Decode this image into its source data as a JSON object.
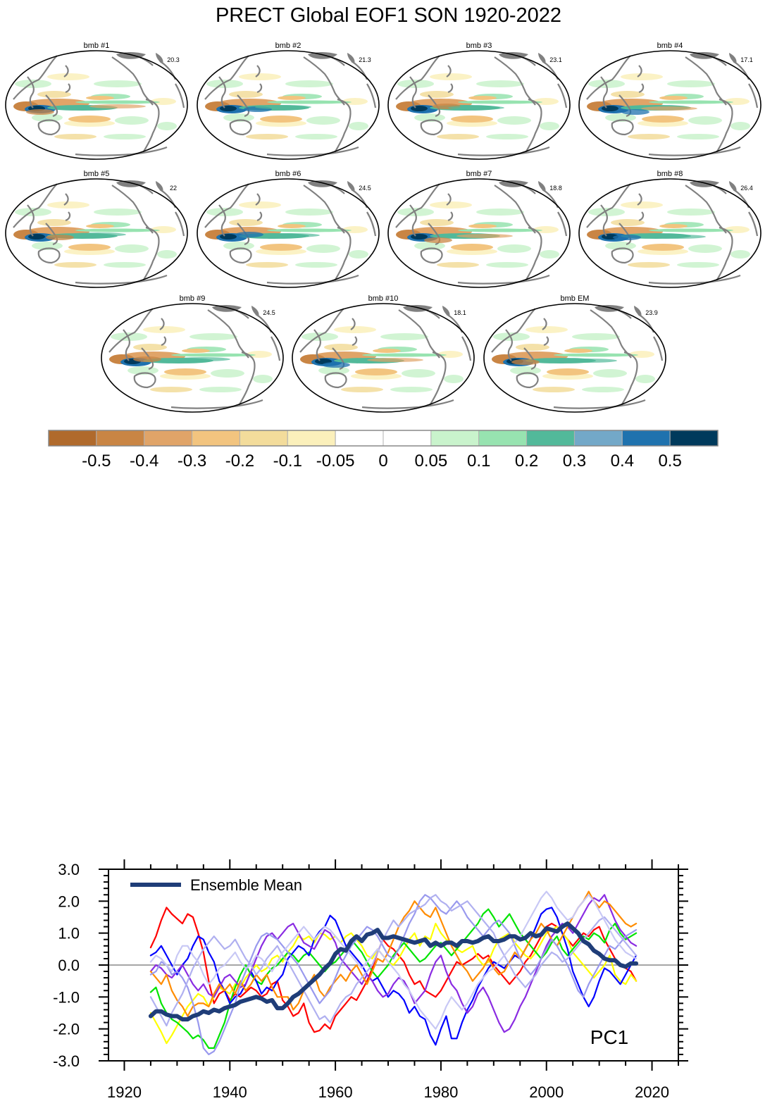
{
  "figure": {
    "title": "PRECT Global EOF1 SON 1920-2022"
  },
  "panels": [
    {
      "label": "bmb #1",
      "percent": "20.3"
    },
    {
      "label": "bmb #2",
      "percent": "21.3"
    },
    {
      "label": "bmb #3",
      "percent": "23.1"
    },
    {
      "label": "bmb #4",
      "percent": "17.1"
    },
    {
      "label": "bmb #5",
      "percent": "22"
    },
    {
      "label": "bmb #6",
      "percent": "24.5"
    },
    {
      "label": "bmb #7",
      "percent": "18.8"
    },
    {
      "label": "bmb #8",
      "percent": "26.4"
    },
    {
      "label": "bmb #9",
      "percent": "24.5"
    },
    {
      "label": "bmb #10",
      "percent": "18.1"
    },
    {
      "label": "bmb EM",
      "percent": "23.9"
    }
  ],
  "colorbar": {
    "colors": [
      "#b06a2c",
      "#c98544",
      "#e0a468",
      "#f2c47f",
      "#f3dc9b",
      "#fbf0bb",
      "#ffffff",
      "#ffffff",
      "#c9f3cc",
      "#97e3b0",
      "#52b99a",
      "#73a8c8",
      "#1f72ae",
      "#003a5c"
    ],
    "labels": [
      "-0.5",
      "-0.4",
      "-0.3",
      "-0.2",
      "-0.1",
      "-0.05",
      "0",
      "0.05",
      "0.1",
      "0.2",
      "0.3",
      "0.4",
      "0.5"
    ]
  },
  "chart_data": {
    "type": "line",
    "title": "",
    "annotation": "PC1",
    "xlabel": "",
    "ylabel": "",
    "xlim": [
      1917,
      2025
    ],
    "ylim": [
      -3.0,
      3.0
    ],
    "x_ticks": [
      1920,
      1940,
      1960,
      1980,
      2000,
      2020
    ],
    "x_tick_labels": [
      "1920",
      "1940",
      "1960",
      "1980",
      "2000",
      "2020"
    ],
    "y_ticks": [
      3.0,
      2.0,
      1.0,
      0.0,
      -1.0,
      -2.0,
      -3.0
    ],
    "y_tick_labels": [
      "3.0",
      "2.0",
      "1.0",
      "0.0",
      "-1.0",
      "-2.0",
      "-3.0"
    ],
    "legend": {
      "label": "Ensemble Mean",
      "location": "top-left"
    },
    "x_start": 1925,
    "x_step": 1,
    "zero_line_color": "#888888",
    "series": [
      {
        "name": "Ensemble Mean",
        "color": "#1f3d78",
        "width": "heavy",
        "values": [
          -1.6,
          -1.45,
          -1.45,
          -1.55,
          -1.6,
          -1.6,
          -1.7,
          -1.7,
          -1.6,
          -1.55,
          -1.45,
          -1.5,
          -1.4,
          -1.45,
          -1.35,
          -1.3,
          -1.25,
          -1.15,
          -1.1,
          -1.05,
          -1.0,
          -1.05,
          -1.15,
          -1.1,
          -1.35,
          -1.35,
          -1.2,
          -1.0,
          -0.9,
          -0.75,
          -0.6,
          -0.45,
          -0.3,
          -0.1,
          0.05,
          0.35,
          0.5,
          0.45,
          0.75,
          0.9,
          0.75,
          0.95,
          1.0,
          1.1,
          0.85,
          0.85,
          0.9,
          0.85,
          0.8,
          0.75,
          0.7,
          0.75,
          0.8,
          0.6,
          0.7,
          0.6,
          0.7,
          0.7,
          0.6,
          0.75,
          0.75,
          0.7,
          0.75,
          0.85,
          0.9,
          0.75,
          0.75,
          0.8,
          0.9,
          0.9,
          0.8,
          0.85,
          1.0,
          0.9,
          0.95,
          1.15,
          1.1,
          1.05,
          1.2,
          1.3,
          1.15,
          1.0,
          0.75,
          0.65,
          0.45,
          0.35,
          0.2,
          0.15,
          0.15,
          0.0,
          -0.05,
          0.05,
          0.05
        ]
      },
      {
        "name": "bmb #1",
        "color": "#ff0000",
        "width": "thin",
        "values": [
          0.55,
          0.9,
          1.4,
          1.8,
          1.6,
          1.45,
          1.3,
          1.6,
          1.5,
          1.0,
          0.4,
          -0.5,
          -1.2,
          -0.9,
          -0.8,
          -1.1,
          -0.9,
          -1.0,
          -0.85,
          -0.7,
          -0.8,
          -1.0,
          -0.9,
          -0.6,
          -0.5,
          -1.1,
          -1.3,
          -1.6,
          -1.5,
          -1.2,
          -1.8,
          -2.1,
          -2.05,
          -1.85,
          -2.0,
          -1.6,
          -1.4,
          -1.2,
          -1.0,
          -1.1,
          -0.8,
          -0.5,
          -0.1,
          0.4,
          0.8,
          0.6,
          0.5,
          0.3,
          0.1,
          -0.3,
          -0.6,
          -0.5,
          -0.8,
          -0.9,
          -1.0,
          -0.8,
          -0.5,
          -0.2,
          0.1,
          0.0,
          0.1,
          0.2,
          0.35,
          0.2,
          0.3,
          0.0,
          -0.2,
          -0.4,
          -0.6,
          -0.4,
          -0.2,
          0.1,
          0.3,
          0.6,
          0.9,
          1.2,
          1.3,
          1.2,
          1.0,
          0.8,
          0.6,
          0.8,
          1.0,
          0.9,
          1.1,
          1.2,
          0.8,
          0.5,
          0.2,
          0.0,
          -0.1,
          -0.2,
          -0.5
        ]
      },
      {
        "name": "bmb #2",
        "color": "#ffff00",
        "width": "thin",
        "values": [
          -1.5,
          -1.8,
          -2.1,
          -2.45,
          -2.2,
          -1.9,
          -1.6,
          -1.3,
          -1.1,
          -0.9,
          -1.0,
          -1.3,
          -1.0,
          -0.7,
          -0.8,
          -0.9,
          -0.6,
          -0.7,
          -0.4,
          -0.2,
          0.0,
          -0.2,
          -0.1,
          0.2,
          0.3,
          0.1,
          0.4,
          0.6,
          0.9,
          0.8,
          0.9,
          0.7,
          1.0,
          0.95,
          0.8,
          0.9,
          0.7,
          0.9,
          1.0,
          0.8,
          0.6,
          0.3,
          0.2,
          0.5,
          0.3,
          0.1,
          0.0,
          0.2,
          0.5,
          0.8,
          1.0,
          0.6,
          0.9,
          0.8,
          1.3,
          1.0,
          0.8,
          0.7,
          0.5,
          0.4,
          0.5,
          0.6,
          0.2,
          0.0,
          0.1,
          0.5,
          0.8,
          0.9,
          1.0,
          0.7,
          0.5,
          0.3,
          0.2,
          0.4,
          0.7,
          1.0,
          1.1,
          1.2,
          1.0,
          0.8,
          0.4,
          0.2,
          0.0,
          -0.2,
          -0.4,
          -0.2,
          0.0,
          0.3,
          -0.3,
          -0.5,
          -0.6,
          -0.3,
          -0.5
        ]
      },
      {
        "name": "bmb #3",
        "color": "#00e400",
        "width": "thin",
        "values": [
          -0.85,
          -0.7,
          -1.2,
          -1.5,
          -1.7,
          -1.8,
          -1.95,
          -2.1,
          -2.3,
          -2.2,
          -2.35,
          -2.6,
          -2.6,
          -2.2,
          -1.8,
          -1.2,
          -0.7,
          -0.3,
          0.0,
          -0.3,
          -0.5,
          -0.6,
          -0.3,
          -0.1,
          0.0,
          0.2,
          0.4,
          0.3,
          0.1,
          0.3,
          0.4,
          0.2,
          0.0,
          -0.2,
          0.0,
          0.1,
          0.3,
          0.5,
          0.8,
          0.6,
          0.4,
          0.1,
          -0.2,
          -0.4,
          -0.2,
          0.0,
          0.3,
          0.5,
          0.7,
          0.5,
          0.3,
          0.1,
          0.2,
          0.4,
          0.6,
          0.7,
          0.5,
          0.3,
          0.5,
          0.7,
          0.9,
          1.1,
          1.3,
          1.6,
          1.75,
          1.5,
          1.2,
          1.4,
          1.6,
          1.3,
          1.0,
          0.8,
          0.6,
          0.4,
          0.2,
          0.4,
          0.7,
          0.9,
          0.5,
          0.3,
          0.5,
          0.7,
          0.9,
          0.8,
          1.0,
          0.9,
          0.7,
          1.1,
          1.3,
          1.0,
          0.8,
          0.9,
          1.0
        ]
      },
      {
        "name": "bmb #4",
        "color": "#0000ff",
        "width": "thin",
        "values": [
          0.3,
          0.4,
          0.6,
          0.3,
          0.0,
          -0.3,
          0.0,
          0.2,
          0.6,
          0.9,
          0.8,
          0.4,
          0.1,
          -0.5,
          -0.8,
          -1.2,
          -1.0,
          -0.9,
          -0.6,
          -0.2,
          -0.5,
          -0.9,
          -0.7,
          -0.8,
          -0.5,
          -0.3,
          0.2,
          0.4,
          0.6,
          0.5,
          0.3,
          0.8,
          1.05,
          1.2,
          1.55,
          1.4,
          1.0,
          0.6,
          0.4,
          0.2,
          0.0,
          -0.3,
          -0.5,
          -0.4,
          -0.7,
          -1.0,
          -0.8,
          -0.9,
          -1.1,
          -1.5,
          -1.3,
          -1.6,
          -1.7,
          -2.2,
          -2.5,
          -2.0,
          -1.6,
          -2.3,
          -2.3,
          -1.8,
          -1.4,
          -1.1,
          -0.7,
          -0.4,
          -0.1,
          0.1,
          0.0,
          -0.1,
          0.1,
          0.3,
          0.2,
          0.5,
          0.8,
          1.2,
          1.6,
          1.75,
          1.8,
          1.5,
          1.0,
          0.5,
          -0.2,
          -0.6,
          -1.0,
          -1.3,
          -1.0,
          -0.5,
          -0.1,
          -0.2,
          -0.4,
          -0.6,
          -0.3,
          0.0,
          0.3
        ]
      },
      {
        "name": "bmb #5",
        "color": "#8a2be2",
        "width": "thin",
        "values": [
          -0.2,
          0.0,
          -0.1,
          -0.3,
          -0.4,
          -0.2,
          0.0,
          -0.3,
          -0.6,
          -0.8,
          -0.6,
          -0.9,
          -1.0,
          -0.7,
          -0.4,
          -0.3,
          -0.5,
          -0.7,
          -0.6,
          -0.2,
          0.2,
          0.6,
          0.9,
          1.0,
          0.8,
          1.0,
          1.2,
          1.3,
          1.0,
          0.7,
          0.6,
          0.5,
          0.8,
          1.1,
          1.0,
          0.7,
          0.2,
          0.0,
          -0.2,
          -0.4,
          -0.6,
          -0.3,
          -0.5,
          -0.8,
          -1.0,
          -0.9,
          -0.6,
          -0.4,
          -0.5,
          -0.8,
          -1.2,
          -1.0,
          -0.8,
          -0.3,
          0.1,
          0.3,
          -0.2,
          -0.6,
          -0.8,
          -1.2,
          -1.5,
          -1.3,
          -0.9,
          -0.7,
          -1.0,
          -1.4,
          -1.8,
          -2.1,
          -2.0,
          -1.7,
          -1.3,
          -1.0,
          -0.6,
          -0.2,
          0.2,
          0.6,
          0.9,
          1.1,
          1.3,
          1.2,
          1.0,
          1.3,
          1.6,
          1.9,
          2.1,
          2.0,
          2.2,
          1.8,
          1.4,
          1.1,
          0.9,
          0.7,
          0.6
        ]
      },
      {
        "name": "bmb #6",
        "color": "#ff8c00",
        "width": "thin",
        "values": [
          -0.2,
          -0.4,
          -0.6,
          -0.3,
          -0.8,
          -1.1,
          -1.3,
          -1.6,
          -1.3,
          -1.2,
          -1.2,
          -1.3,
          -0.9,
          -0.6,
          -0.8,
          -0.6,
          -0.9,
          -0.5,
          -0.8,
          -0.6,
          -0.3,
          -0.5,
          -0.3,
          -0.7,
          -1.0,
          -1.0,
          -1.0,
          -1.4,
          -1.2,
          -0.8,
          -0.6,
          -0.3,
          -0.8,
          -1.0,
          -0.7,
          -0.5,
          -0.3,
          -0.5,
          -0.2,
          0.0,
          -0.3,
          -0.6,
          -0.2,
          0.2,
          0.1,
          0.4,
          0.8,
          1.2,
          1.5,
          1.7,
          2.0,
          1.8,
          1.6,
          1.5,
          1.8,
          1.4,
          1.0,
          0.6,
          0.3,
          0.0,
          -0.2,
          -0.5,
          -0.3,
          -0.1,
          0.2,
          -0.1,
          -0.3,
          -0.2,
          0.1,
          0.4,
          0.2,
          0.5,
          0.8,
          1.0,
          1.3,
          1.1,
          0.8,
          0.6,
          0.9,
          1.2,
          1.5,
          1.8,
          2.0,
          2.3,
          2.0,
          1.8,
          2.0,
          1.9,
          1.7,
          1.5,
          1.3,
          1.2,
          1.3
        ]
      },
      {
        "name": "bmb #7",
        "color": "#9999ee",
        "width": "thin",
        "values": [
          -0.3,
          -0.2,
          0.1,
          0.0,
          -0.3,
          -0.2,
          -0.4,
          -0.7,
          -1.2,
          -1.8,
          -2.6,
          -2.8,
          -2.7,
          -2.4,
          -2.0,
          -1.6,
          -1.2,
          -0.6,
          -0.2,
          0.2,
          0.6,
          0.9,
          1.0,
          0.9,
          0.8,
          0.6,
          0.4,
          0.2,
          0.0,
          -0.3,
          -0.6,
          -0.9,
          -1.2,
          -1.0,
          -0.8,
          -0.4,
          0.0,
          0.3,
          0.6,
          0.8,
          1.0,
          1.2,
          1.1,
          0.9,
          0.6,
          0.3,
          0.2,
          0.5,
          0.9,
          1.3,
          1.6,
          2.0,
          2.2,
          2.1,
          1.9,
          1.7,
          1.6,
          1.8,
          2.0,
          1.8,
          1.5,
          1.3,
          1.1,
          0.9,
          1.1,
          1.3,
          1.4,
          1.2,
          1.0,
          0.6,
          0.2,
          -0.1,
          -0.3,
          -0.1,
          0.2,
          0.5,
          0.8,
          0.6,
          0.3,
          0.0,
          -0.4,
          -0.8,
          -1.0,
          -0.6,
          -0.3,
          0.0,
          0.3,
          0.6,
          0.5,
          0.7,
          0.9,
          1.0,
          1.1
        ]
      },
      {
        "name": "bmb #8",
        "color": "#b0b0f0",
        "width": "thin",
        "values": [
          -1.0,
          -1.3,
          -1.6,
          -1.9,
          -1.5,
          -1.2,
          -0.9,
          -0.5,
          -0.1,
          0.2,
          0.5,
          0.7,
          0.9,
          0.7,
          0.5,
          0.6,
          0.8,
          0.5,
          0.2,
          0.0,
          -0.3,
          -0.1,
          0.2,
          0.4,
          0.6,
          0.3,
          0.1,
          -0.2,
          -0.5,
          -0.8,
          -1.1,
          -1.4,
          -1.7,
          -1.6,
          -1.8,
          -1.5,
          -1.2,
          -1.0,
          -0.9,
          -0.6,
          -0.4,
          -0.2,
          0.0,
          0.4,
          0.8,
          1.1,
          1.4,
          1.2,
          1.4,
          1.6,
          1.7,
          1.8,
          1.9,
          2.1,
          2.2,
          2.0,
          1.9,
          1.7,
          1.8,
          1.9,
          2.0,
          1.8,
          1.6,
          1.4,
          1.2,
          1.0,
          0.6,
          0.3,
          0.0,
          -0.3,
          -0.5,
          -0.7,
          -0.5,
          -0.3,
          0.0,
          0.2,
          0.4,
          0.3,
          0.1,
          0.2,
          0.4,
          0.6,
          0.8,
          1.0,
          1.2,
          1.4,
          1.5,
          1.3,
          1.1,
          0.9,
          0.7,
          0.5,
          0.3
        ]
      },
      {
        "name": "bmb #9",
        "color": "#c8c8f5",
        "width": "thin",
        "values": [
          0.1,
          0.3,
          0.2,
          0.0,
          -0.2,
          0.3,
          0.6,
          0.6,
          0.3,
          0.1,
          -0.3,
          -0.6,
          -0.4,
          -0.1,
          0.0,
          0.2,
          0.4,
          0.1,
          -0.1,
          0.0,
          0.3,
          0.2,
          0.0,
          -0.2,
          0.1,
          0.4,
          0.6,
          0.8,
          1.0,
          1.2,
          1.0,
          0.8,
          1.0,
          1.2,
          1.1,
          0.9,
          0.7,
          0.5,
          0.3,
          0.1,
          -0.1,
          0.1,
          0.3,
          0.5,
          0.3,
          0.1,
          -0.1,
          -0.3,
          -0.6,
          -0.8,
          -1.1,
          -1.4,
          -1.6,
          -1.8,
          -2.0,
          -1.7,
          -1.3,
          -1.0,
          -1.2,
          -1.4,
          -1.2,
          -0.9,
          -0.6,
          -0.4,
          -0.2,
          -0.1,
          0.1,
          0.3,
          0.5,
          0.7,
          0.9,
          1.2,
          1.5,
          1.8,
          2.1,
          2.3,
          2.1,
          1.8,
          1.6,
          1.4,
          1.5,
          1.8,
          2.0,
          2.2,
          2.0,
          1.7,
          1.4,
          1.1,
          0.8,
          0.6,
          0.4,
          0.3,
          0.2
        ]
      }
    ]
  }
}
